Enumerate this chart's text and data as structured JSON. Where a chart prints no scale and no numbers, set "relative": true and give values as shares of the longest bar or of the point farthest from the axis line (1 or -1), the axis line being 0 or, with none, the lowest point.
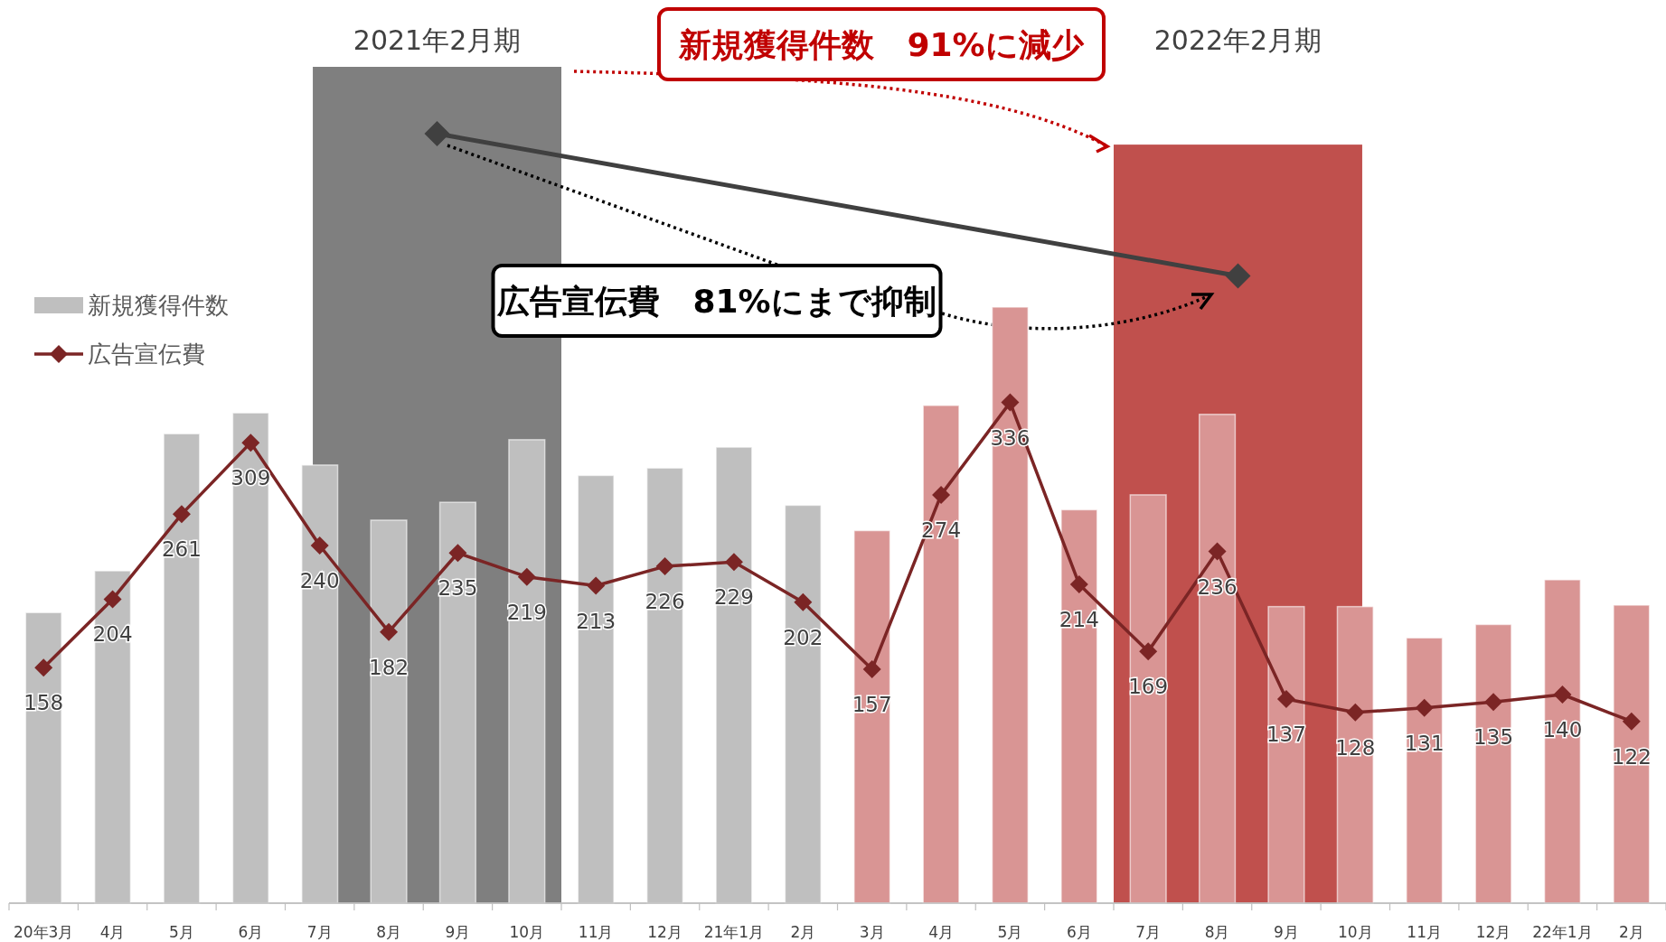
{
  "chart_data": [
    {
      "type": "bar",
      "relative": true,
      "categories": [
        "2021年2月期",
        "2022年2月期"
      ],
      "series": [
        {
          "type": "bar",
          "colors": [
            "#7f7f7f",
            "#c0504d"
          ],
          "values": [
            1,
            0.907
          ]
        },
        {
          "type": "line",
          "color": "#404040",
          "marker": "diamond",
          "values": [
            0.92,
            0.75
          ]
        }
      ],
      "annotations": [
        "新規獲得件数　91%に減少",
        "広告宣伝費　81%にまで抑制"
      ]
    },
    {
      "type": "bar",
      "categories": [
        "20年3月",
        "4月",
        "5月",
        "6月",
        "7月",
        "8月",
        "9月",
        "10月",
        "11月",
        "12月",
        "21年1月",
        "2月",
        "3月",
        "4月",
        "5月",
        "6月",
        "7月",
        "8月",
        "9月",
        "10月",
        "11月",
        "12月",
        "22年1月",
        "2月"
      ],
      "tick_labels": "x",
      "legend": "left",
      "series": [
        {
          "type": "bar",
          "name": "新規獲得件数",
          "colors": [
            "#bfbfbf",
            "#bfbfbf",
            "#bfbfbf",
            "#bfbfbf",
            "#bfbfbf",
            "#bfbfbf",
            "#bfbfbf",
            "#bfbfbf",
            "#bfbfbf",
            "#bfbfbf",
            "#bfbfbf",
            "#bfbfbf",
            "#d99594",
            "#d99594",
            "#d99594",
            "#d99594",
            "#d99594",
            "#d99594",
            "#d99594",
            "#d99594",
            "#d99594",
            "#d99594",
            "#d99594",
            "#d99594"
          ],
          "values": [
            195,
            223,
            315,
            329,
            294,
            257,
            269,
            311,
            287,
            292,
            306,
            267,
            250,
            334,
            400,
            264,
            274,
            328,
            199,
            199,
            178,
            187,
            217,
            200
          ]
        },
        {
          "type": "line",
          "name": "広告宣伝費",
          "color": "#7b2525",
          "marker": "diamond",
          "data_labels": true,
          "values": [
            158,
            204,
            261,
            309,
            240,
            182,
            235,
            219,
            213,
            226,
            229,
            202,
            157,
            274,
            336,
            214,
            169,
            236,
            137,
            128,
            131,
            135,
            140,
            122
          ]
        }
      ]
    }
  ]
}
